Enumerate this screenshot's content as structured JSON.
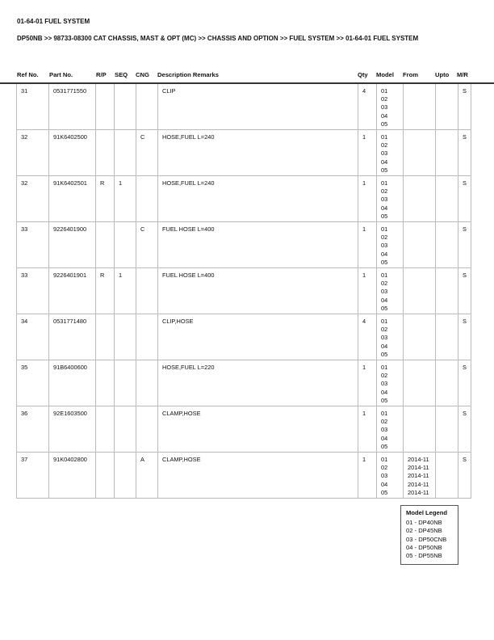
{
  "title": "01-64-01 FUEL SYSTEM",
  "breadcrumb": "DP50NB >> 98733-08300 CAT CHASSIS, MAST & OPT (MC) >> CHASSIS AND OPTION >> FUEL SYSTEM >> 01-64-01 FUEL SYSTEM",
  "columns": [
    "Ref No.",
    "Part No.",
    "R/P",
    "SEQ",
    "CNG",
    "Description Remarks",
    "Qty",
    "Model",
    "From",
    "Upto",
    "M/R"
  ],
  "rows": [
    {
      "ref": "31",
      "part": "0531771550",
      "rp": "",
      "seq": "",
      "cng": "",
      "desc": "CLIP",
      "qty": "4",
      "models": "01\n02\n03\n04\n05",
      "from": "",
      "upto": "",
      "mr": "S"
    },
    {
      "ref": "32",
      "part": "91K6402500",
      "rp": "",
      "seq": "",
      "cng": "C",
      "desc": "HOSE,FUEL L=240",
      "qty": "1",
      "models": "01\n02\n03\n04\n05",
      "from": "",
      "upto": "",
      "mr": "S"
    },
    {
      "ref": "32",
      "part": "91K6402501",
      "rp": "R",
      "seq": "1",
      "cng": "",
      "desc": "HOSE,FUEL L=240",
      "qty": "1",
      "models": "01\n02\n03\n04\n05",
      "from": "",
      "upto": "",
      "mr": "S"
    },
    {
      "ref": "33",
      "part": "9226401900",
      "rp": "",
      "seq": "",
      "cng": "C",
      "desc": "FUEL HOSE L=400",
      "qty": "1",
      "models": "01\n02\n03\n04\n05",
      "from": "",
      "upto": "",
      "mr": "S"
    },
    {
      "ref": "33",
      "part": "9226401901",
      "rp": "R",
      "seq": "1",
      "cng": "",
      "desc": "FUEL HOSE L=400",
      "qty": "1",
      "models": "01\n02\n03\n04\n05",
      "from": "",
      "upto": "",
      "mr": "S"
    },
    {
      "ref": "34",
      "part": "0531771480",
      "rp": "",
      "seq": "",
      "cng": "",
      "desc": "CLIP,HOSE",
      "qty": "4",
      "models": "01\n02\n03\n04\n05",
      "from": "",
      "upto": "",
      "mr": "S"
    },
    {
      "ref": "35",
      "part": "91B6400600",
      "rp": "",
      "seq": "",
      "cng": "",
      "desc": "HOSE,FUEL L=220",
      "qty": "1",
      "models": "01\n02\n03\n04\n05",
      "from": "",
      "upto": "",
      "mr": "S"
    },
    {
      "ref": "36",
      "part": "92E1603500",
      "rp": "",
      "seq": "",
      "cng": "",
      "desc": "CLAMP,HOSE",
      "qty": "1",
      "models": "01\n02\n03\n04\n05",
      "from": "",
      "upto": "",
      "mr": "S"
    },
    {
      "ref": "37",
      "part": "91K0402800",
      "rp": "",
      "seq": "",
      "cng": "A",
      "desc": "CLAMP,HOSE",
      "qty": "1",
      "models": "01\n02\n03\n04\n05",
      "from": "2014-11\n2014-11\n2014-11\n2014-11\n2014-11",
      "upto": "",
      "mr": "S"
    }
  ],
  "legend": {
    "title": "Model Legend",
    "items": [
      "01 - DP40NB",
      "02 - DP45NB",
      "03 - DP50CNB",
      "04 - DP50NB",
      "05 - DP55NB"
    ]
  }
}
